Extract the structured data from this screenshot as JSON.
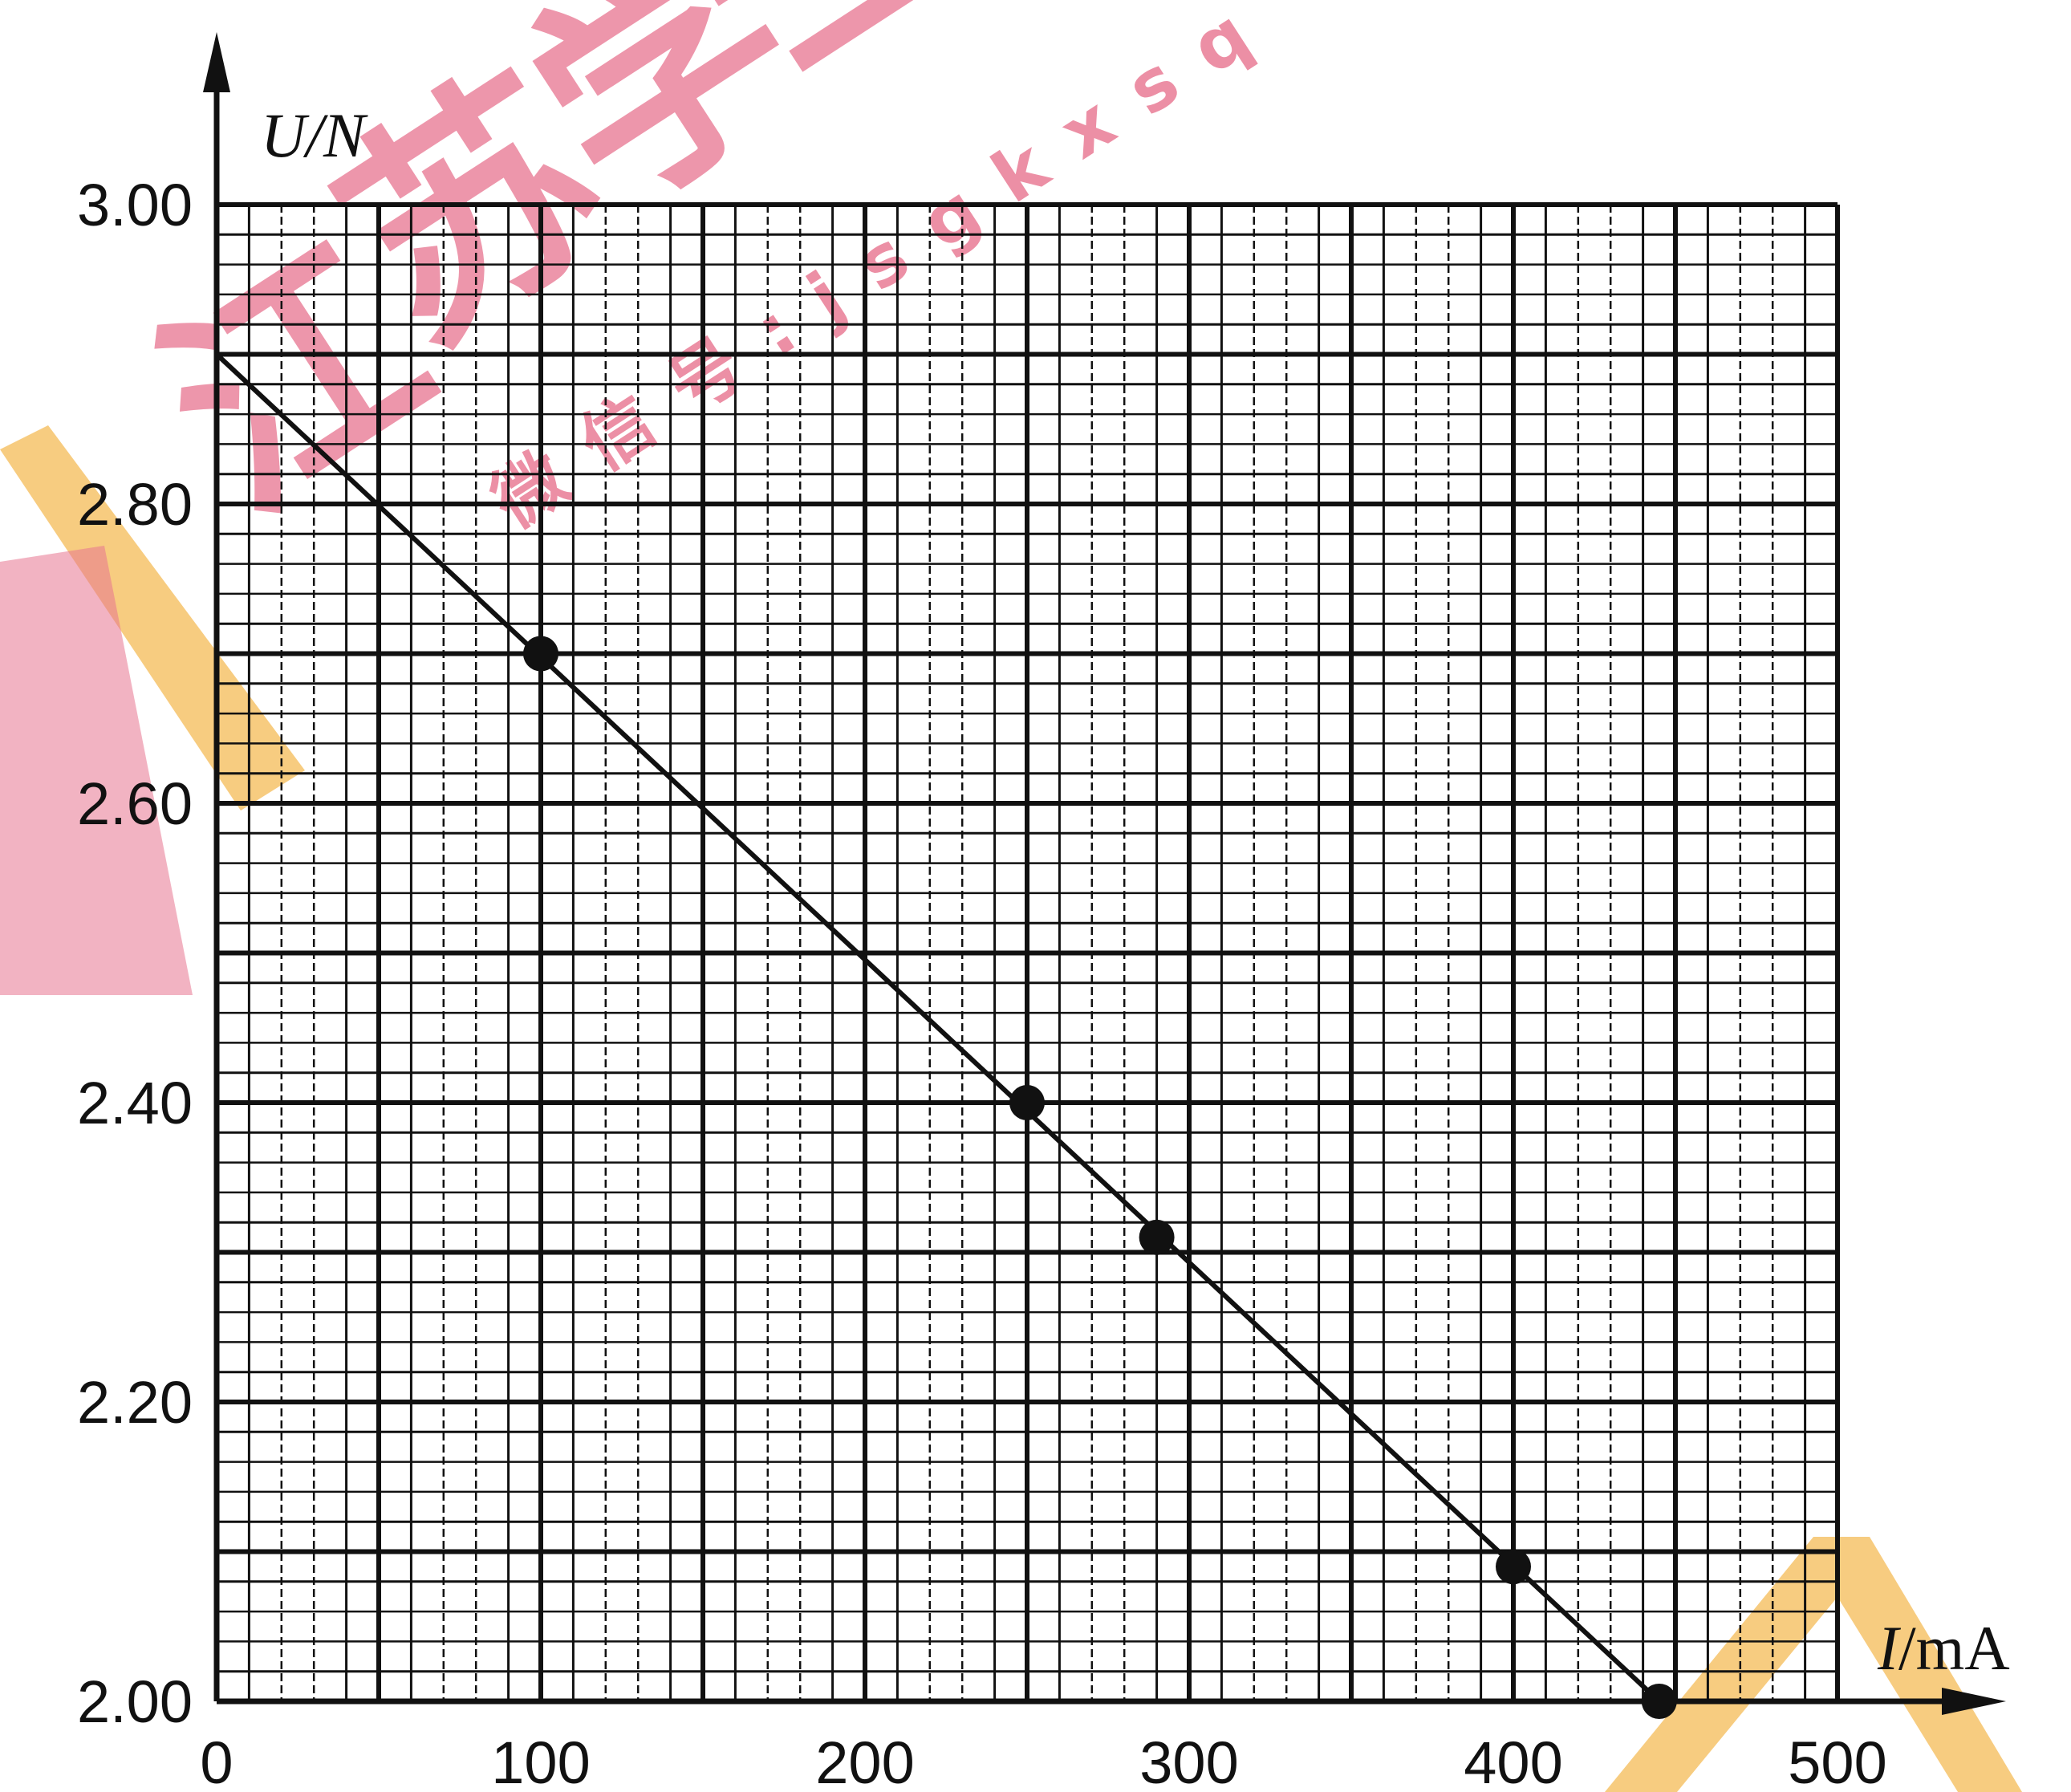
{
  "chart_data": {
    "type": "scatter",
    "x_label_italic": "I",
    "x_label_unit": "/mA",
    "y_label": "U/N",
    "xlim": [
      0,
      500
    ],
    "ylim": [
      2.0,
      3.0
    ],
    "x_ticks": [
      "0",
      "100",
      "200",
      "300",
      "400",
      "500"
    ],
    "y_ticks": [
      "2.00",
      "2.20",
      "2.40",
      "2.60",
      "2.80",
      "3.00"
    ],
    "x_tick_values": [
      0,
      100,
      200,
      300,
      400,
      500
    ],
    "y_tick_values": [
      2.0,
      2.2,
      2.4,
      2.6,
      2.8,
      3.0
    ],
    "grid": "fine-graph-paper",
    "series": [
      {
        "points": [
          {
            "x": 100,
            "y": 2.7
          },
          {
            "x": 250,
            "y": 2.4
          },
          {
            "x": 290,
            "y": 2.31
          },
          {
            "x": 400,
            "y": 2.09
          },
          {
            "x": 445,
            "y": 2.0
          }
        ]
      }
    ],
    "fit_line": {
      "x": [
        0,
        445
      ],
      "y": [
        2.9,
        2.0
      ]
    },
    "colors": {
      "ink": "#111111",
      "watermark_pink": "#e8748f",
      "watermark_orange": "#f6c36a"
    }
  },
  "watermark": {
    "chars": [
      "江",
      "苏",
      "学",
      "生"
    ],
    "wechat": "微 信 号 : j s g k x s q"
  }
}
